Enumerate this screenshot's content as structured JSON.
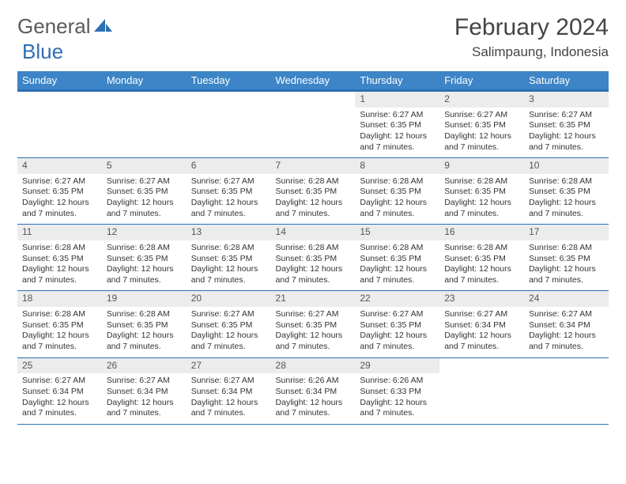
{
  "brand": {
    "part1": "General",
    "part2": "Blue"
  },
  "title": "February 2024",
  "location": "Salimpaung, Indonesia",
  "colors": {
    "header_bg": "#3d85c6",
    "header_border": "#2d6fb5",
    "daynum_bg": "#ececec",
    "text": "#333333",
    "brand_gray": "#5a5a5a",
    "brand_blue": "#2d6fb5"
  },
  "typography": {
    "month_fontsize": 30,
    "location_fontsize": 17,
    "dayheader_fontsize": 13,
    "cell_fontsize": 10.5
  },
  "weekdays": [
    "Sunday",
    "Monday",
    "Tuesday",
    "Wednesday",
    "Thursday",
    "Friday",
    "Saturday"
  ],
  "weeks": [
    [
      {
        "n": "",
        "sr": "",
        "ss": "",
        "dl": ""
      },
      {
        "n": "",
        "sr": "",
        "ss": "",
        "dl": ""
      },
      {
        "n": "",
        "sr": "",
        "ss": "",
        "dl": ""
      },
      {
        "n": "",
        "sr": "",
        "ss": "",
        "dl": ""
      },
      {
        "n": "1",
        "sr": "Sunrise: 6:27 AM",
        "ss": "Sunset: 6:35 PM",
        "dl": "Daylight: 12 hours and 7 minutes."
      },
      {
        "n": "2",
        "sr": "Sunrise: 6:27 AM",
        "ss": "Sunset: 6:35 PM",
        "dl": "Daylight: 12 hours and 7 minutes."
      },
      {
        "n": "3",
        "sr": "Sunrise: 6:27 AM",
        "ss": "Sunset: 6:35 PM",
        "dl": "Daylight: 12 hours and 7 minutes."
      }
    ],
    [
      {
        "n": "4",
        "sr": "Sunrise: 6:27 AM",
        "ss": "Sunset: 6:35 PM",
        "dl": "Daylight: 12 hours and 7 minutes."
      },
      {
        "n": "5",
        "sr": "Sunrise: 6:27 AM",
        "ss": "Sunset: 6:35 PM",
        "dl": "Daylight: 12 hours and 7 minutes."
      },
      {
        "n": "6",
        "sr": "Sunrise: 6:27 AM",
        "ss": "Sunset: 6:35 PM",
        "dl": "Daylight: 12 hours and 7 minutes."
      },
      {
        "n": "7",
        "sr": "Sunrise: 6:28 AM",
        "ss": "Sunset: 6:35 PM",
        "dl": "Daylight: 12 hours and 7 minutes."
      },
      {
        "n": "8",
        "sr": "Sunrise: 6:28 AM",
        "ss": "Sunset: 6:35 PM",
        "dl": "Daylight: 12 hours and 7 minutes."
      },
      {
        "n": "9",
        "sr": "Sunrise: 6:28 AM",
        "ss": "Sunset: 6:35 PM",
        "dl": "Daylight: 12 hours and 7 minutes."
      },
      {
        "n": "10",
        "sr": "Sunrise: 6:28 AM",
        "ss": "Sunset: 6:35 PM",
        "dl": "Daylight: 12 hours and 7 minutes."
      }
    ],
    [
      {
        "n": "11",
        "sr": "Sunrise: 6:28 AM",
        "ss": "Sunset: 6:35 PM",
        "dl": "Daylight: 12 hours and 7 minutes."
      },
      {
        "n": "12",
        "sr": "Sunrise: 6:28 AM",
        "ss": "Sunset: 6:35 PM",
        "dl": "Daylight: 12 hours and 7 minutes."
      },
      {
        "n": "13",
        "sr": "Sunrise: 6:28 AM",
        "ss": "Sunset: 6:35 PM",
        "dl": "Daylight: 12 hours and 7 minutes."
      },
      {
        "n": "14",
        "sr": "Sunrise: 6:28 AM",
        "ss": "Sunset: 6:35 PM",
        "dl": "Daylight: 12 hours and 7 minutes."
      },
      {
        "n": "15",
        "sr": "Sunrise: 6:28 AM",
        "ss": "Sunset: 6:35 PM",
        "dl": "Daylight: 12 hours and 7 minutes."
      },
      {
        "n": "16",
        "sr": "Sunrise: 6:28 AM",
        "ss": "Sunset: 6:35 PM",
        "dl": "Daylight: 12 hours and 7 minutes."
      },
      {
        "n": "17",
        "sr": "Sunrise: 6:28 AM",
        "ss": "Sunset: 6:35 PM",
        "dl": "Daylight: 12 hours and 7 minutes."
      }
    ],
    [
      {
        "n": "18",
        "sr": "Sunrise: 6:28 AM",
        "ss": "Sunset: 6:35 PM",
        "dl": "Daylight: 12 hours and 7 minutes."
      },
      {
        "n": "19",
        "sr": "Sunrise: 6:28 AM",
        "ss": "Sunset: 6:35 PM",
        "dl": "Daylight: 12 hours and 7 minutes."
      },
      {
        "n": "20",
        "sr": "Sunrise: 6:27 AM",
        "ss": "Sunset: 6:35 PM",
        "dl": "Daylight: 12 hours and 7 minutes."
      },
      {
        "n": "21",
        "sr": "Sunrise: 6:27 AM",
        "ss": "Sunset: 6:35 PM",
        "dl": "Daylight: 12 hours and 7 minutes."
      },
      {
        "n": "22",
        "sr": "Sunrise: 6:27 AM",
        "ss": "Sunset: 6:35 PM",
        "dl": "Daylight: 12 hours and 7 minutes."
      },
      {
        "n": "23",
        "sr": "Sunrise: 6:27 AM",
        "ss": "Sunset: 6:34 PM",
        "dl": "Daylight: 12 hours and 7 minutes."
      },
      {
        "n": "24",
        "sr": "Sunrise: 6:27 AM",
        "ss": "Sunset: 6:34 PM",
        "dl": "Daylight: 12 hours and 7 minutes."
      }
    ],
    [
      {
        "n": "25",
        "sr": "Sunrise: 6:27 AM",
        "ss": "Sunset: 6:34 PM",
        "dl": "Daylight: 12 hours and 7 minutes."
      },
      {
        "n": "26",
        "sr": "Sunrise: 6:27 AM",
        "ss": "Sunset: 6:34 PM",
        "dl": "Daylight: 12 hours and 7 minutes."
      },
      {
        "n": "27",
        "sr": "Sunrise: 6:27 AM",
        "ss": "Sunset: 6:34 PM",
        "dl": "Daylight: 12 hours and 7 minutes."
      },
      {
        "n": "28",
        "sr": "Sunrise: 6:26 AM",
        "ss": "Sunset: 6:34 PM",
        "dl": "Daylight: 12 hours and 7 minutes."
      },
      {
        "n": "29",
        "sr": "Sunrise: 6:26 AM",
        "ss": "Sunset: 6:33 PM",
        "dl": "Daylight: 12 hours and 7 minutes."
      },
      {
        "n": "",
        "sr": "",
        "ss": "",
        "dl": ""
      },
      {
        "n": "",
        "sr": "",
        "ss": "",
        "dl": ""
      }
    ]
  ]
}
